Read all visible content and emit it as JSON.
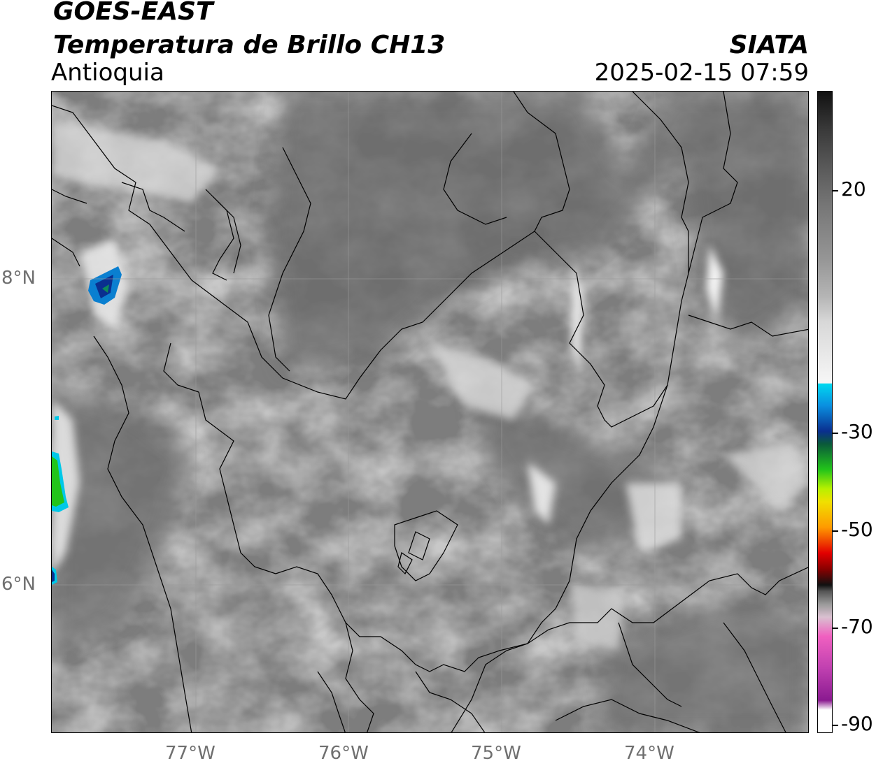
{
  "header": {
    "satellite": "GOES-EAST",
    "product": "Temperatura de Brillo CH13",
    "region": "Antioquia",
    "organization": "SIATA",
    "timestamp": "2025-02-15 07:59"
  },
  "map": {
    "lat_labels": [
      "8°N",
      "6°N"
    ],
    "lon_labels": [
      "77°W",
      "76°W",
      "75°W",
      "74°W"
    ],
    "gridlines": true,
    "background": "grayscale brightness temperature imagery with black political boundaries"
  },
  "colorbar": {
    "tick_labels": [
      "20",
      "-30",
      "-50",
      "-70",
      "-90"
    ],
    "colors": {
      "top": "#111111",
      "upper_gray": "#777777",
      "white_band": "#f5f5f5",
      "cyan": "#00d8f0",
      "blue": "#0a2f8f",
      "green": "#22c41a",
      "yellow": "#f0e000",
      "orange": "#ff9a00",
      "red": "#e30000",
      "dark_red": "#5a0000",
      "pink": "#f060c0",
      "magenta": "#8a1a90"
    }
  }
}
